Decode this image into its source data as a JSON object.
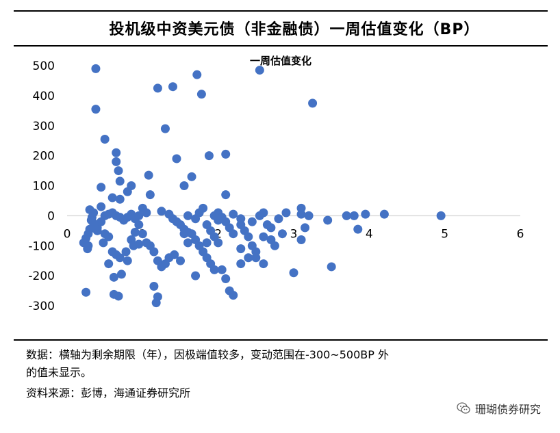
{
  "header": {
    "title": "投机级中资美元债（非金融债）一周估值变化（BP）"
  },
  "footer": {
    "note_line1": "数据：横轴为剩余期限（年），因极端值较多，变动范围在-300~500BP 外",
    "note_line2": "的值未显示。",
    "source": "资料来源：彭博，海通证券研究所"
  },
  "watermark": {
    "text": "珊瑚债券研究",
    "icon": "wechat-icon"
  },
  "colors": {
    "marker": "#4472C4",
    "axis": "#d9d9d9"
  },
  "chart_data": {
    "type": "scatter",
    "title": "一周估值变化",
    "xlabel": "",
    "ylabel": "",
    "xlim": [
      0,
      6
    ],
    "ylim": [
      -300,
      500
    ],
    "xticks": [
      "0",
      "1",
      "2",
      "3",
      "4",
      "5",
      "6"
    ],
    "yticks": [
      "500",
      "400",
      "300",
      "200",
      "100",
      "0",
      "-100",
      "-200",
      "-300"
    ],
    "grid": false,
    "legend": "none",
    "points": [
      [
        0.38,
        490
      ],
      [
        0.38,
        355
      ],
      [
        0.5,
        255
      ],
      [
        0.65,
        210
      ],
      [
        0.65,
        180
      ],
      [
        0.68,
        150
      ],
      [
        0.7,
        115
      ],
      [
        0.45,
        95
      ],
      [
        0.85,
        100
      ],
      [
        0.8,
        80
      ],
      [
        0.6,
        60
      ],
      [
        0.7,
        55
      ],
      [
        0.45,
        30
      ],
      [
        0.3,
        20
      ],
      [
        0.35,
        10
      ],
      [
        0.33,
        -5
      ],
      [
        0.32,
        -15
      ],
      [
        0.35,
        -25
      ],
      [
        0.28,
        -60
      ],
      [
        0.25,
        -75
      ],
      [
        0.22,
        -90
      ],
      [
        0.28,
        -100
      ],
      [
        0.27,
        -110
      ],
      [
        0.4,
        -50
      ],
      [
        0.5,
        -60
      ],
      [
        0.55,
        -70
      ],
      [
        0.48,
        -90
      ],
      [
        0.6,
        -120
      ],
      [
        0.65,
        -130
      ],
      [
        0.55,
        -160
      ],
      [
        0.7,
        -140
      ],
      [
        0.78,
        -120
      ],
      [
        0.8,
        -150
      ],
      [
        0.72,
        -195
      ],
      [
        0.62,
        -205
      ],
      [
        0.25,
        -255
      ],
      [
        0.62,
        -262
      ],
      [
        0.68,
        -268
      ],
      [
        0.5,
        0
      ],
      [
        0.55,
        5
      ],
      [
        0.6,
        10
      ],
      [
        0.65,
        0
      ],
      [
        0.7,
        -5
      ],
      [
        0.75,
        -15
      ],
      [
        0.8,
        -5
      ],
      [
        0.85,
        5
      ],
      [
        0.9,
        -10
      ],
      [
        0.95,
        0
      ],
      [
        1.0,
        25
      ],
      [
        1.05,
        10
      ],
      [
        0.95,
        -30
      ],
      [
        0.9,
        -55
      ],
      [
        0.85,
        -80
      ],
      [
        0.88,
        -100
      ],
      [
        1.0,
        -60
      ],
      [
        1.05,
        -90
      ],
      [
        1.1,
        -100
      ],
      [
        1.15,
        -120
      ],
      [
        1.2,
        -150
      ],
      [
        1.3,
        -160
      ],
      [
        1.25,
        -170
      ],
      [
        1.35,
        -140
      ],
      [
        1.08,
        135
      ],
      [
        1.1,
        70
      ],
      [
        1.2,
        425
      ],
      [
        1.3,
        290
      ],
      [
        1.4,
        430
      ],
      [
        1.45,
        190
      ],
      [
        1.55,
        100
      ],
      [
        1.65,
        130
      ],
      [
        1.25,
        15
      ],
      [
        1.35,
        5
      ],
      [
        1.4,
        -10
      ],
      [
        1.45,
        -20
      ],
      [
        1.5,
        -30
      ],
      [
        1.55,
        -45
      ],
      [
        1.6,
        -55
      ],
      [
        1.65,
        -60
      ],
      [
        1.7,
        -80
      ],
      [
        1.75,
        -100
      ],
      [
        1.8,
        -120
      ],
      [
        1.85,
        -140
      ],
      [
        1.9,
        -160
      ],
      [
        1.95,
        -180
      ],
      [
        1.7,
        -200
      ],
      [
        1.15,
        -235
      ],
      [
        1.2,
        -270
      ],
      [
        1.18,
        -290
      ],
      [
        1.42,
        -130
      ],
      [
        1.5,
        -150
      ],
      [
        1.6,
        0
      ],
      [
        1.7,
        -10
      ],
      [
        1.75,
        10
      ],
      [
        1.8,
        25
      ],
      [
        1.85,
        -30
      ],
      [
        1.9,
        -50
      ],
      [
        1.95,
        -70
      ],
      [
        2.0,
        -90
      ],
      [
        1.72,
        470
      ],
      [
        1.78,
        405
      ],
      [
        1.88,
        200
      ],
      [
        2.1,
        205
      ],
      [
        2.1,
        70
      ],
      [
        2.0,
        10
      ],
      [
        2.05,
        -5
      ],
      [
        2.1,
        -20
      ],
      [
        2.15,
        -40
      ],
      [
        2.2,
        -60
      ],
      [
        2.05,
        -180
      ],
      [
        2.1,
        -210
      ],
      [
        2.15,
        -250
      ],
      [
        2.2,
        -265
      ],
      [
        1.85,
        -90
      ],
      [
        2.3,
        -30
      ],
      [
        2.35,
        -50
      ],
      [
        2.4,
        -70
      ],
      [
        2.45,
        -100
      ],
      [
        2.5,
        -120
      ],
      [
        2.4,
        -140
      ],
      [
        2.3,
        -160
      ],
      [
        2.2,
        5
      ],
      [
        2.3,
        -10
      ],
      [
        2.45,
        -20
      ],
      [
        2.55,
        0
      ],
      [
        2.6,
        10
      ],
      [
        2.65,
        -30
      ],
      [
        2.7,
        -80
      ],
      [
        2.75,
        -100
      ],
      [
        2.6,
        -160
      ],
      [
        2.3,
        -110
      ],
      [
        2.5,
        -140
      ],
      [
        2.6,
        -70
      ],
      [
        2.7,
        -40
      ],
      [
        2.8,
        -10
      ],
      [
        2.55,
        485
      ],
      [
        3.25,
        375
      ],
      [
        3.0,
        -190
      ],
      [
        3.1,
        -80
      ],
      [
        3.15,
        -40
      ],
      [
        3.1,
        25
      ],
      [
        3.2,
        0
      ],
      [
        3.1,
        5
      ],
      [
        2.9,
        10
      ],
      [
        3.5,
        -170
      ],
      [
        3.45,
        -15
      ],
      [
        3.7,
        0
      ],
      [
        3.8,
        0
      ],
      [
        3.85,
        -45
      ],
      [
        3.95,
        5
      ],
      [
        4.2,
        5
      ],
      [
        4.95,
        0
      ],
      [
        2.85,
        -60
      ],
      [
        1.95,
        0
      ],
      [
        2.0,
        -15
      ],
      [
        0.4,
        -40
      ],
      [
        0.45,
        -20
      ],
      [
        0.3,
        -45
      ],
      [
        1.55,
        -60
      ],
      [
        1.6,
        -90
      ],
      [
        0.95,
        -95
      ]
    ]
  }
}
